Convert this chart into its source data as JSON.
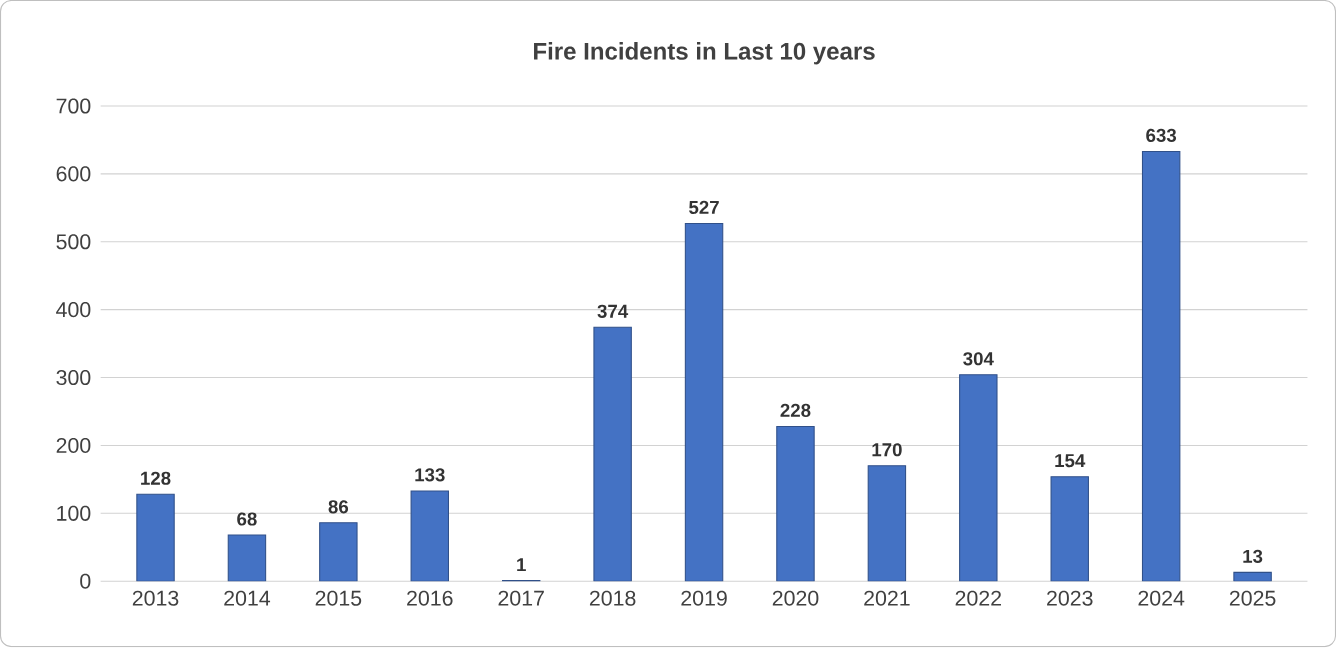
{
  "chart_data": {
    "type": "bar",
    "title": "Fire Incidents in Last 10 years",
    "categories": [
      "2013",
      "2014",
      "2015",
      "2016",
      "2017",
      "2018",
      "2019",
      "2020",
      "2021",
      "2022",
      "2023",
      "2024",
      "2025"
    ],
    "values": [
      128,
      68,
      86,
      133,
      1,
      374,
      527,
      228,
      170,
      304,
      154,
      633,
      13
    ],
    "color": "#4472c4",
    "ylim": [
      0,
      700
    ],
    "yticks": [
      0,
      100,
      200,
      300,
      400,
      500,
      600,
      700
    ],
    "grid": "y",
    "data_labels": true
  }
}
